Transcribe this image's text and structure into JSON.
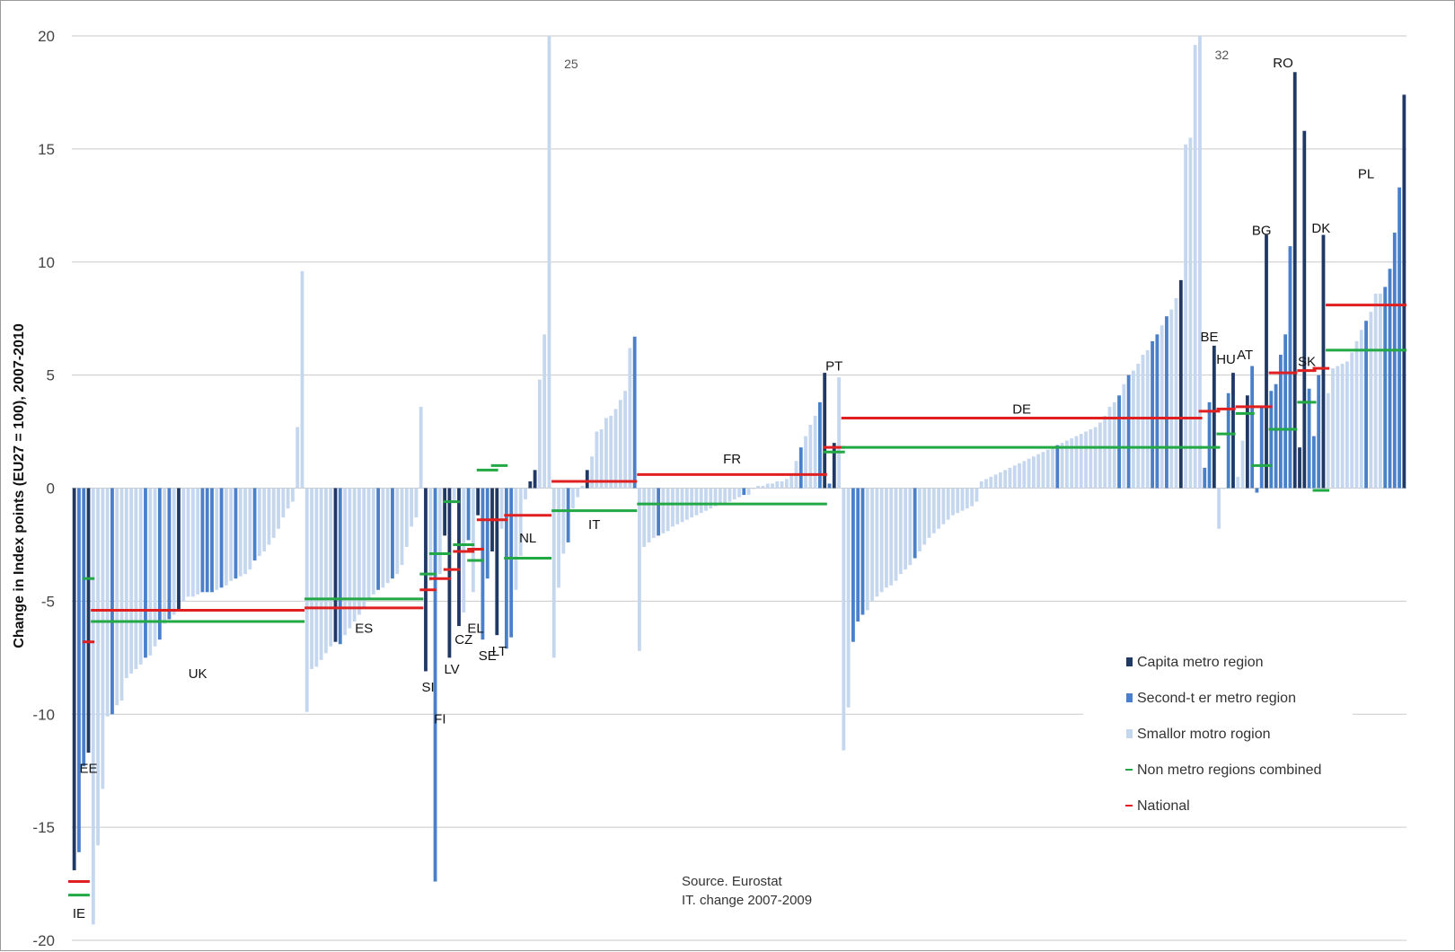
{
  "chart_data": {
    "type": "bar",
    "title": "",
    "ylabel": "Change in Index points (EU27 = 100), 2007-2010",
    "ylim": [
      -20,
      20
    ],
    "yticks": [
      20,
      15,
      10,
      5,
      0,
      -5,
      -10,
      -15,
      -20
    ],
    "ytick_labels": [
      "20",
      "15",
      "10",
      "5",
      "0",
      "-5",
      "-10",
      "-15",
      "-20"
    ],
    "grid": true,
    "legend_position": "bottom-right",
    "colors": {
      "capital": "#1f3864",
      "second": "#4a7fc9",
      "smaller": "#c5d7ee",
      "nonmetro": "#22a844",
      "national": "#e02020"
    },
    "legend": [
      {
        "key": "capital",
        "label": "Capita metro region",
        "marker": "bar"
      },
      {
        "key": "second",
        "label": "Second-t er metro region",
        "marker": "bar"
      },
      {
        "key": "smaller",
        "label": "Smallor motro rogion",
        "marker": "bar"
      },
      {
        "key": "nonmetro",
        "label": "Non metro regions combined",
        "marker": "line"
      },
      {
        "key": "national",
        "label": "National",
        "marker": "line"
      }
    ],
    "source_lines": [
      "Source. Eurostat",
      "IT. change 2007-2009"
    ],
    "overflow_notes": [
      {
        "text": "25",
        "at_value": 20
      },
      {
        "text": "32",
        "at_value": 20
      }
    ],
    "countries": [
      {
        "code": "IE",
        "values": [
          -16.9,
          -16.1,
          -12.3
        ],
        "types": [
          "c",
          "s",
          "s"
        ],
        "national": -17.4,
        "nonmetro": -18.0,
        "label_value": -18.8
      },
      {
        "code": "EE",
        "values": [
          -11.7
        ],
        "types": [
          "c"
        ],
        "national": -6.8,
        "nonmetro": -4.0,
        "label_value": -12.4
      },
      {
        "code": "UK",
        "values": [
          -19.3,
          -15.8,
          -13.3,
          -10.1,
          -10.0,
          -9.6,
          -9.4,
          -8.4,
          -8.2,
          -8.0,
          -7.8,
          -7.5,
          -7.4,
          -7.0,
          -6.7,
          -6.0,
          -5.8,
          -5.6,
          -5.4,
          -5.0,
          -4.8,
          -4.8,
          -4.7,
          -4.6,
          -4.6,
          -4.6,
          -4.5,
          -4.4,
          -4.3,
          -4.1,
          -4.0,
          -3.9,
          -3.8,
          -3.6,
          -3.2,
          -3.0,
          -2.8,
          -2.5,
          -2.2,
          -1.8,
          -1.3,
          -0.9,
          -0.6,
          2.7,
          9.6
        ],
        "types": [
          "l",
          "l",
          "l",
          "l",
          "s",
          "l",
          "l",
          "l",
          "l",
          "l",
          "l",
          "s",
          "l",
          "l",
          "s",
          "l",
          "s",
          "l",
          "c",
          "l",
          "l",
          "l",
          "l",
          "s",
          "s",
          "s",
          "l",
          "s",
          "l",
          "l",
          "s",
          "l",
          "l",
          "l",
          "s",
          "l",
          "l",
          "l",
          "l",
          "l",
          "l",
          "l",
          "l",
          "l",
          "l"
        ],
        "national": -5.4,
        "nonmetro": -5.9,
        "label_value": -8.2
      },
      {
        "code": "ES",
        "values": [
          -9.9,
          -8.0,
          -7.9,
          -7.6,
          -7.3,
          -7.0,
          -6.8,
          -6.9,
          -6.5,
          -6.2,
          -5.9,
          -5.6,
          -5.3,
          -4.9,
          -4.7,
          -4.5,
          -4.4,
          -4.2,
          -4.0,
          -3.8,
          -3.4,
          -2.6,
          -1.7,
          -1.3,
          3.6
        ],
        "types": [
          "l",
          "l",
          "l",
          "l",
          "l",
          "l",
          "c",
          "s",
          "l",
          "l",
          "l",
          "l",
          "l",
          "l",
          "l",
          "s",
          "l",
          "l",
          "s",
          "l",
          "l",
          "l",
          "l",
          "l",
          "l"
        ],
        "national": -5.3,
        "nonmetro": -4.9,
        "label_value": -6.2
      },
      {
        "code": "SI",
        "values": [
          -8.1,
          -4.1
        ],
        "types": [
          "c",
          "l"
        ],
        "national": -4.5,
        "nonmetro": -3.8,
        "label_value": -8.8
      },
      {
        "code": "FI",
        "values": [
          -17.4,
          -3.8,
          -2.1
        ],
        "types": [
          "s",
          "l",
          "c"
        ],
        "national": -4.0,
        "nonmetro": -2.9,
        "label_value": -10.2
      },
      {
        "code": "LV",
        "values": [
          -7.5,
          -0.6
        ],
        "types": [
          "c",
          "l"
        ],
        "national": -3.6,
        "nonmetro": -0.6,
        "label_value": -8.0
      },
      {
        "code": "CZ",
        "values": [
          -6.1,
          -5.5,
          -2.3
        ],
        "types": [
          "c",
          "l",
          "s"
        ],
        "national": -2.8,
        "nonmetro": -2.5,
        "label_value": -6.7
      },
      {
        "code": "EL",
        "values": [
          -4.6,
          -1.2
        ],
        "types": [
          "l",
          "c"
        ],
        "national": -2.7,
        "nonmetro": -3.2,
        "label_value": -6.2
      },
      {
        "code": "SE",
        "values": [
          -6.7,
          -4.0,
          -2.8
        ],
        "types": [
          "s",
          "s",
          "c"
        ],
        "national": -1.4,
        "nonmetro": 0.8,
        "label_value": -7.4
      },
      {
        "code": "LT",
        "values": [
          -6.5,
          -1.8
        ],
        "types": [
          "c",
          "l"
        ],
        "national": -1.4,
        "nonmetro": 1.0,
        "label_value": -7.2
      },
      {
        "code": "NL",
        "values": [
          -7.1,
          -6.6,
          -4.5,
          -3.0,
          -0.5,
          0.3,
          0.8,
          4.8,
          6.8,
          25
        ],
        "types": [
          "s",
          "s",
          "l",
          "l",
          "l",
          "c",
          "c",
          "l",
          "l",
          "l"
        ],
        "national": -1.2,
        "nonmetro": -3.1,
        "label_value": -2.2
      },
      {
        "code": "IT",
        "values": [
          -7.5,
          -4.4,
          -2.9,
          -2.4,
          -0.9,
          -0.4,
          0.1,
          0.8,
          1.4,
          2.5,
          2.6,
          3.1,
          3.2,
          3.5,
          3.9,
          4.3,
          6.2,
          6.7
        ],
        "types": [
          "l",
          "l",
          "l",
          "s",
          "l",
          "l",
          "l",
          "c",
          "l",
          "l",
          "l",
          "l",
          "l",
          "l",
          "l",
          "l",
          "l",
          "s"
        ],
        "national": 0.3,
        "nonmetro": -1.0,
        "label_value": -1.6
      },
      {
        "code": "FR",
        "values": [
          -7.2,
          -2.6,
          -2.4,
          -2.2,
          -2.1,
          -2.0,
          -1.9,
          -1.7,
          -1.6,
          -1.5,
          -1.4,
          -1.3,
          -1.2,
          -1.1,
          -1.0,
          -0.9,
          -0.8,
          -0.7,
          -0.7,
          -0.6,
          -0.5,
          -0.4,
          -0.3,
          -0.3,
          0.0,
          0.1,
          0.1,
          0.2,
          0.2,
          0.3,
          0.3,
          0.4,
          0.6,
          1.2,
          1.8,
          2.3,
          2.8,
          3.2,
          3.8,
          5.1
        ],
        "types": [
          "l",
          "l",
          "l",
          "l",
          "s",
          "l",
          "l",
          "l",
          "l",
          "l",
          "l",
          "l",
          "l",
          "l",
          "l",
          "l",
          "l",
          "l",
          "l",
          "l",
          "l",
          "l",
          "s",
          "l",
          "l",
          "l",
          "l",
          "l",
          "l",
          "l",
          "l",
          "l",
          "l",
          "l",
          "s",
          "l",
          "l",
          "l",
          "s",
          "c"
        ],
        "national": 0.6,
        "nonmetro": -0.7,
        "label_value": 1.3
      },
      {
        "code": "PT",
        "values": [
          0.2,
          2.0,
          4.9
        ],
        "types": [
          "s",
          "c",
          "l"
        ],
        "national": 1.8,
        "nonmetro": 1.6,
        "label_value": 5.4
      },
      {
        "code": "DE",
        "values": [
          -11.6,
          -9.7,
          -6.8,
          -5.9,
          -5.6,
          -5.4,
          -5.0,
          -4.8,
          -4.6,
          -4.4,
          -4.3,
          -4.1,
          -3.8,
          -3.6,
          -3.4,
          -3.1,
          -2.8,
          -2.5,
          -2.2,
          -2.0,
          -1.8,
          -1.6,
          -1.4,
          -1.2,
          -1.1,
          -1.0,
          -0.9,
          -0.8,
          -0.6,
          0.3,
          0.4,
          0.5,
          0.6,
          0.7,
          0.8,
          0.9,
          1.0,
          1.1,
          1.2,
          1.3,
          1.4,
          1.5,
          1.6,
          1.7,
          1.8,
          1.9,
          2.0,
          2.1,
          2.2,
          2.3,
          2.4,
          2.5,
          2.6,
          2.7,
          2.9,
          3.2,
          3.6,
          3.8,
          4.1,
          4.6,
          5.0,
          5.2,
          5.5,
          5.9,
          6.1,
          6.5,
          6.8,
          7.2,
          7.6,
          7.9,
          8.4,
          9.2,
          15.2,
          15.5,
          19.6,
          32
        ],
        "types": [
          "l",
          "l",
          "s",
          "s",
          "s",
          "l",
          "l",
          "l",
          "l",
          "l",
          "l",
          "l",
          "l",
          "l",
          "l",
          "s",
          "l",
          "l",
          "l",
          "l",
          "l",
          "l",
          "l",
          "l",
          "l",
          "l",
          "l",
          "l",
          "l",
          "l",
          "l",
          "l",
          "l",
          "l",
          "l",
          "l",
          "l",
          "l",
          "l",
          "l",
          "l",
          "l",
          "l",
          "l",
          "l",
          "s",
          "l",
          "l",
          "l",
          "l",
          "l",
          "l",
          "l",
          "l",
          "l",
          "l",
          "l",
          "l",
          "s",
          "l",
          "s",
          "l",
          "l",
          "l",
          "l",
          "s",
          "s",
          "l",
          "s",
          "l",
          "l",
          "c",
          "l",
          "l",
          "l",
          "l"
        ],
        "national": 3.1,
        "nonmetro": 1.8,
        "label_value": 3.5
      },
      {
        "code": "BE",
        "values": [
          0.9,
          3.8,
          6.3
        ],
        "types": [
          "s",
          "s",
          "c"
        ],
        "national": 3.4,
        "nonmetro": 1.8,
        "label_value": 6.7
      },
      {
        "code": "HU",
        "values": [
          -1.8,
          0.0,
          4.2,
          5.1
        ],
        "types": [
          "l",
          "l",
          "s",
          "c"
        ],
        "national": 3.5,
        "nonmetro": 2.4,
        "label_value": 5.7
      },
      {
        "code": "AT",
        "values": [
          0.5,
          2.1,
          4.1,
          5.4
        ],
        "types": [
          "l",
          "l",
          "c",
          "s"
        ],
        "national": 3.6,
        "nonmetro": 3.3,
        "label_value": 5.9
      },
      {
        "code": "BG",
        "values": [
          -0.2,
          3.6,
          11.2
        ],
        "types": [
          "s",
          "s",
          "c"
        ],
        "national": 3.6,
        "nonmetro": 1.0,
        "label_value": 11.4
      },
      {
        "code": "RO",
        "values": [
          4.3,
          4.6,
          5.9,
          6.8,
          10.7,
          18.4
        ],
        "types": [
          "s",
          "s",
          "s",
          "s",
          "s",
          "c"
        ],
        "national": 5.1,
        "nonmetro": 2.6,
        "label_value": 18.8
      },
      {
        "code": "SK",
        "values": [
          1.8,
          15.8,
          4.4,
          2.3
        ],
        "types": [
          "c",
          "c",
          "s",
          "s"
        ],
        "national": 5.2,
        "nonmetro": 3.8,
        "label_value": 5.6
      },
      {
        "code": "DK",
        "values": [
          5.0,
          11.2
        ],
        "types": [
          "s",
          "c"
        ],
        "national": 5.3,
        "nonmetro": -0.1,
        "label_value": 11.5
      },
      {
        "code": "PL",
        "values": [
          4.2,
          5.3,
          5.4,
          5.5,
          5.6,
          6.0,
          6.5,
          7.0,
          7.4,
          7.8,
          8.6,
          8.6,
          8.9,
          9.7,
          11.3,
          13.3,
          17.4
        ],
        "types": [
          "l",
          "l",
          "l",
          "l",
          "l",
          "l",
          "l",
          "l",
          "s",
          "l",
          "l",
          "l",
          "s",
          "s",
          "s",
          "s",
          "c"
        ],
        "national": 8.1,
        "nonmetro": 6.1,
        "label_value": 13.9
      }
    ]
  }
}
